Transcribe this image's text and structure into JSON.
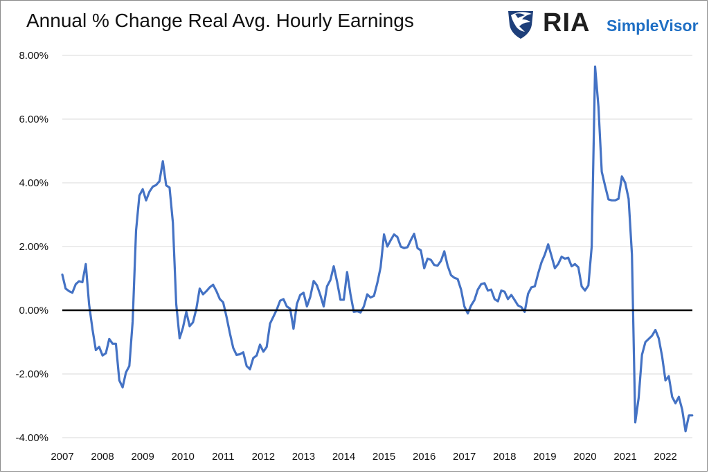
{
  "title": "Annual % Change Real Avg. Hourly Earnings",
  "logo": {
    "brand": "RIA",
    "product": "SimpleVisor",
    "icon": "eagle-shield-icon"
  },
  "colors": {
    "line": "#4472C4",
    "zero_line": "#000000",
    "grid": "#d9d9d9",
    "brand_blue": "#1f6fc4"
  },
  "chart_data": {
    "type": "line",
    "title": "Annual % Change Real Avg. Hourly Earnings",
    "xlabel": "",
    "ylabel": "",
    "x_start": 2007.0,
    "x_step_months": 1,
    "xlim": [
      2007,
      2022.67
    ],
    "ylim": [
      -4,
      8
    ],
    "yticks": [
      8,
      6,
      4,
      2,
      0,
      -2,
      -4
    ],
    "ytick_labels": [
      "8.00%",
      "6.00%",
      "4.00%",
      "2.00%",
      "0.00%",
      "-2.00%",
      "-4.00%"
    ],
    "xticks": [
      2007,
      2008,
      2009,
      2010,
      2011,
      2012,
      2013,
      2014,
      2015,
      2016,
      2017,
      2018,
      2019,
      2020,
      2021,
      2022
    ],
    "xtick_labels": [
      "2007",
      "2008",
      "2009",
      "2010",
      "2011",
      "2012",
      "2013",
      "2014",
      "2015",
      "2016",
      "2017",
      "2018",
      "2019",
      "2020",
      "2021",
      "2022"
    ],
    "grid": "horizontal",
    "zero_line": true,
    "series": [
      {
        "values": [
          1.12,
          0.68,
          0.6,
          0.55,
          0.82,
          0.91,
          0.88,
          1.45,
          0.18,
          -0.6,
          -1.25,
          -1.15,
          -1.42,
          -1.35,
          -0.9,
          -1.05,
          -1.05,
          -2.2,
          -2.42,
          -1.95,
          -1.75,
          -0.35,
          2.5,
          3.6,
          3.8,
          3.45,
          3.72,
          3.88,
          3.93,
          4.05,
          4.68,
          3.92,
          3.85,
          2.75,
          0.2,
          -0.88,
          -0.55,
          -0.05,
          -0.5,
          -0.38,
          0.05,
          0.68,
          0.5,
          0.6,
          0.72,
          0.8,
          0.6,
          0.35,
          0.25,
          -0.2,
          -0.72,
          -1.18,
          -1.4,
          -1.38,
          -1.32,
          -1.75,
          -1.85,
          -1.5,
          -1.42,
          -1.08,
          -1.3,
          -1.15,
          -0.42,
          -0.2,
          0.02,
          0.3,
          0.35,
          0.12,
          0.05,
          -0.58,
          0.2,
          0.48,
          0.55,
          0.12,
          0.42,
          0.92,
          0.78,
          0.48,
          0.12,
          0.75,
          0.95,
          1.38,
          0.9,
          0.33,
          0.33,
          1.2,
          0.5,
          -0.05,
          -0.03,
          -0.07,
          0.12,
          0.5,
          0.4,
          0.45,
          0.85,
          1.35,
          2.38,
          2.0,
          2.2,
          2.38,
          2.3,
          2.0,
          1.95,
          1.98,
          2.2,
          2.4,
          1.95,
          1.88,
          1.32,
          1.62,
          1.58,
          1.42,
          1.4,
          1.55,
          1.85,
          1.4,
          1.1,
          1.02,
          0.98,
          0.65,
          0.12,
          -0.1,
          0.15,
          0.32,
          0.65,
          0.82,
          0.85,
          0.62,
          0.65,
          0.35,
          0.28,
          0.62,
          0.58,
          0.35,
          0.48,
          0.32,
          0.15,
          0.1,
          -0.05,
          0.52,
          0.72,
          0.75,
          1.15,
          1.5,
          1.75,
          2.07,
          1.7,
          1.32,
          1.45,
          1.68,
          1.62,
          1.65,
          1.38,
          1.45,
          1.35,
          0.75,
          0.62,
          0.78,
          2.0,
          7.65,
          6.4,
          4.35,
          3.9,
          3.48,
          3.45,
          3.45,
          3.5,
          4.2,
          4.0,
          3.5,
          1.75,
          -3.52,
          -2.75,
          -1.4,
          -1.0,
          -0.9,
          -0.8,
          -0.62,
          -0.88,
          -1.45,
          -2.2,
          -2.07,
          -2.72,
          -2.92,
          -2.72,
          -3.12,
          -3.8,
          -3.3,
          -3.3
        ]
      }
    ]
  }
}
